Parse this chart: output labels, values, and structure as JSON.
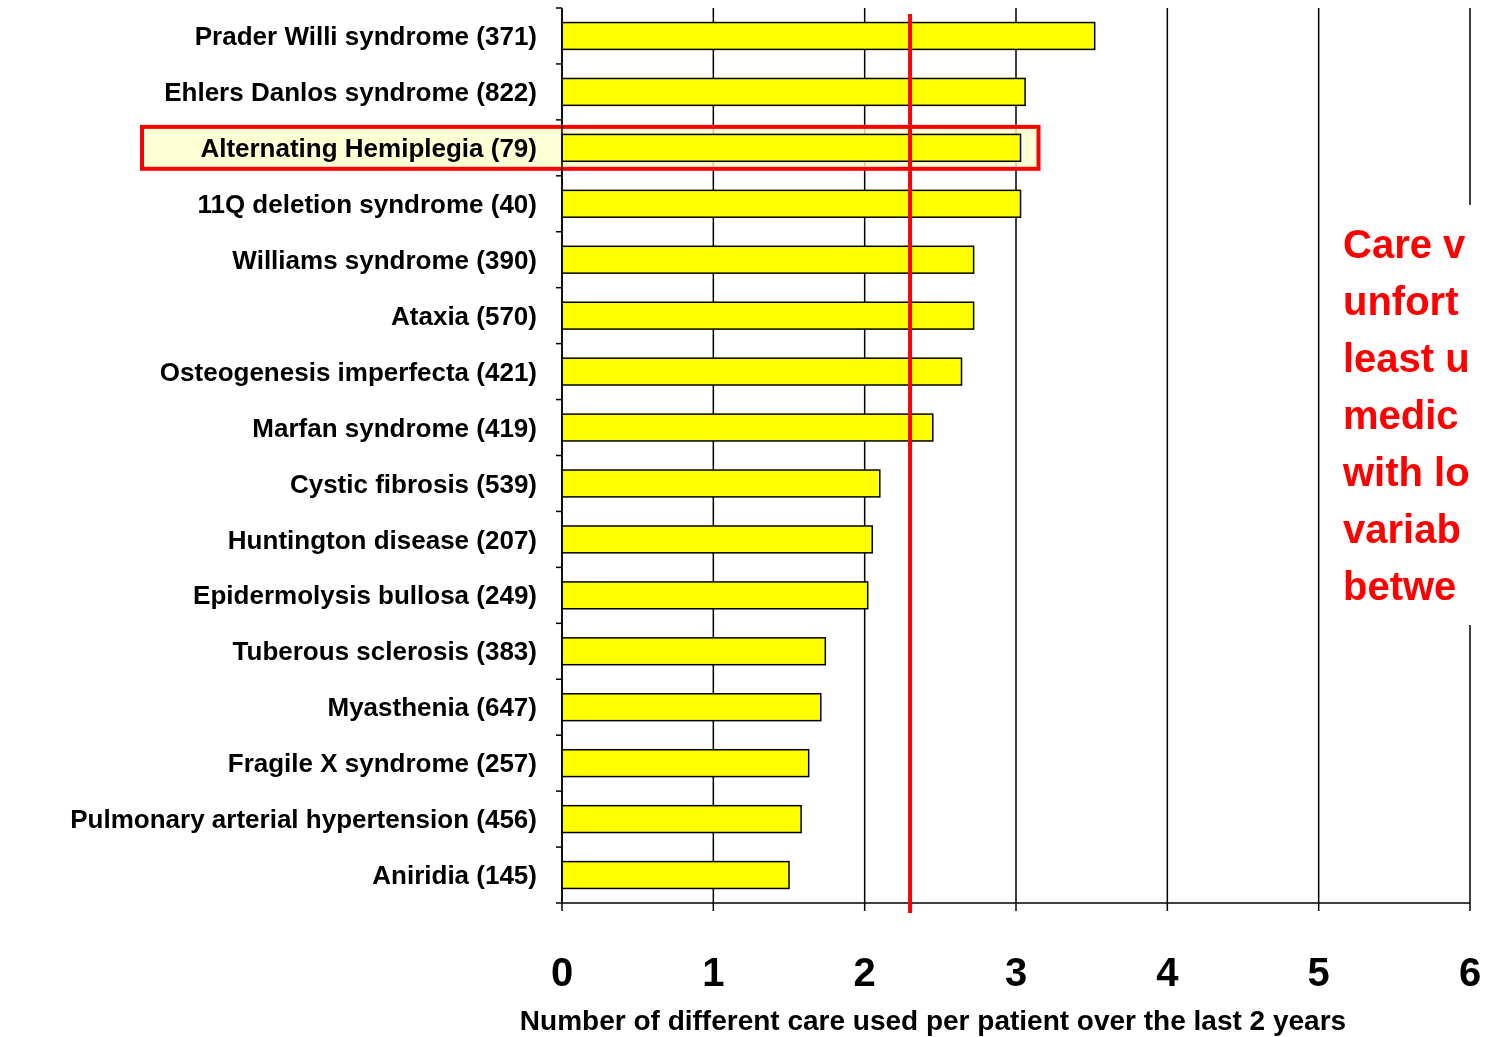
{
  "chart_data": {
    "type": "bar",
    "orientation": "horizontal",
    "xlabel": "Number of different care used per patient over the last 2 years",
    "categories": [
      "Prader Willi syndrome (371)",
      "Ehlers Danlos syndrome (822)",
      "Alternating Hemiplegia (79)",
      "11Q deletion syndrome (40)",
      "Williams syndrome (390)",
      "Ataxia (570)",
      "Osteogenesis imperfecta (421)",
      "Marfan syndrome (419)",
      "Cystic fibrosis (539)",
      "Huntington disease (207)",
      "Epidermolysis bullosa (249)",
      "Tuberous sclerosis (383)",
      "Myasthenia (647)",
      "Fragile X syndrome (257)",
      "Pulmonary arterial hypertension (456)",
      "Aniridia (145)"
    ],
    "values": [
      3.52,
      3.06,
      3.03,
      3.03,
      2.72,
      2.72,
      2.64,
      2.45,
      2.1,
      2.05,
      2.02,
      1.74,
      1.71,
      1.63,
      1.58,
      1.5
    ],
    "color": "#ffff00",
    "xlim": [
      0,
      6
    ],
    "xticks": [
      0,
      1,
      2,
      3,
      4,
      5,
      6
    ],
    "grid": "x",
    "ref_lines": [
      {
        "axis": "x",
        "value": 2.3,
        "color": "#ff0000"
      }
    ],
    "bands": [
      {
        "axis": "y",
        "from": "Alternating Hemiplegia (79)",
        "to": "Alternating Hemiplegia (79)",
        "color": "#ff0000"
      }
    ],
    "annotations": [
      "Care v\nunfort\nleast u\nmedic\nwith lo\nvariab\nbetwe"
    ]
  }
}
